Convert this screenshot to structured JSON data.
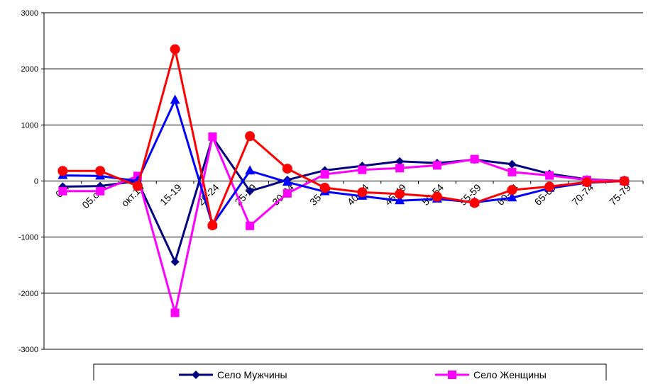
{
  "chart_data": {
    "type": "line",
    "title": "",
    "xlabel": "",
    "ylabel": "",
    "ylim": [
      -3000,
      3000
    ],
    "yticks": [
      -3000,
      -2000,
      -1000,
      0,
      1000,
      2000,
      3000
    ],
    "grid": "horizontal",
    "legend_position": "bottom",
    "categories": [
      "0-4",
      "05.сен",
      "окт.14",
      "15-19",
      "20-24",
      "25-29",
      "30-34",
      "35-39",
      "40-44",
      "45-49",
      "50-54",
      "55-59",
      "60-64",
      "65-69",
      "70-74",
      "75-79"
    ],
    "series": [
      {
        "name": "Село Мужчины",
        "color": "#000080",
        "marker": "diamond",
        "values": [
          -100,
          -90,
          0,
          -1440,
          780,
          -180,
          20,
          190,
          270,
          350,
          320,
          380,
          300,
          130,
          30,
          0
        ]
      },
      {
        "name": "Село Женщины",
        "color": "#ff00ff",
        "marker": "square",
        "values": [
          -180,
          -180,
          90,
          -2350,
          790,
          -800,
          -220,
          120,
          200,
          230,
          280,
          390,
          160,
          100,
          20,
          0
        ]
      },
      {
        "color": "#0000ff",
        "marker": "triangle",
        "values": [
          100,
          90,
          0,
          1440,
          -780,
          180,
          -20,
          -190,
          -270,
          -350,
          -320,
          -380,
          -300,
          -130,
          -30,
          0
        ]
      },
      {
        "color": "#ff0000",
        "marker": "circle",
        "values": [
          180,
          180,
          -90,
          2350,
          -790,
          800,
          220,
          -120,
          -200,
          -230,
          -280,
          -390,
          -160,
          -100,
          -20,
          0
        ]
      }
    ]
  }
}
